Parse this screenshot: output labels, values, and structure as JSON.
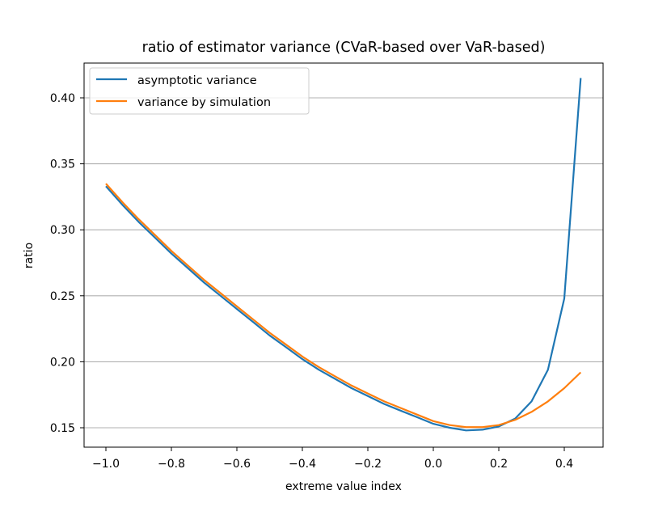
{
  "chart_data": {
    "type": "line",
    "title": "ratio of estimator variance (CVaR-based over VaR-based)",
    "xlabel": "extreme value index",
    "ylabel": "ratio",
    "xlim": [
      -1.07,
      0.52
    ],
    "ylim": [
      0.135,
      0.43
    ],
    "xticks": [
      -1.0,
      -0.8,
      -0.6,
      -0.4,
      -0.2,
      0.0,
      0.2,
      0.4
    ],
    "xtick_labels": [
      "−1.0",
      "−0.8",
      "−0.6",
      "−0.4",
      "−0.2",
      "0.0",
      "0.2",
      "0.4"
    ],
    "yticks": [
      0.15,
      0.2,
      0.25,
      0.3,
      0.35,
      0.4
    ],
    "ytick_labels": [
      "0.15",
      "0.20",
      "0.25",
      "0.30",
      "0.35",
      "0.40"
    ],
    "grid": "horizontal",
    "legend_position": "top-left",
    "x": [
      -1.0,
      -0.95,
      -0.9,
      -0.85,
      -0.8,
      -0.75,
      -0.7,
      -0.65,
      -0.6,
      -0.55,
      -0.5,
      -0.45,
      -0.4,
      -0.35,
      -0.3,
      -0.25,
      -0.2,
      -0.15,
      -0.1,
      -0.05,
      0.0,
      0.05,
      0.1,
      0.15,
      0.2,
      0.25,
      0.3,
      0.35,
      0.4,
      0.45
    ],
    "series": [
      {
        "name": "asymptotic variance",
        "color": "#1f77b4",
        "values": [
          0.333,
          0.319,
          0.306,
          0.294,
          0.282,
          0.271,
          0.26,
          0.25,
          0.24,
          0.23,
          0.22,
          0.211,
          0.202,
          0.194,
          0.187,
          0.18,
          0.174,
          0.168,
          0.163,
          0.158,
          0.153,
          0.15,
          0.148,
          0.1485,
          0.151,
          0.157,
          0.17,
          0.194,
          0.248,
          0.415
        ]
      },
      {
        "name": "variance by simulation",
        "color": "#ff7f0e",
        "values": [
          0.335,
          0.321,
          0.308,
          0.296,
          0.284,
          0.273,
          0.262,
          0.252,
          0.242,
          0.232,
          0.222,
          0.213,
          0.204,
          0.196,
          0.189,
          0.182,
          0.176,
          0.17,
          0.165,
          0.16,
          0.155,
          0.152,
          0.1505,
          0.1505,
          0.152,
          0.156,
          0.162,
          0.17,
          0.18,
          0.192
        ]
      }
    ]
  }
}
